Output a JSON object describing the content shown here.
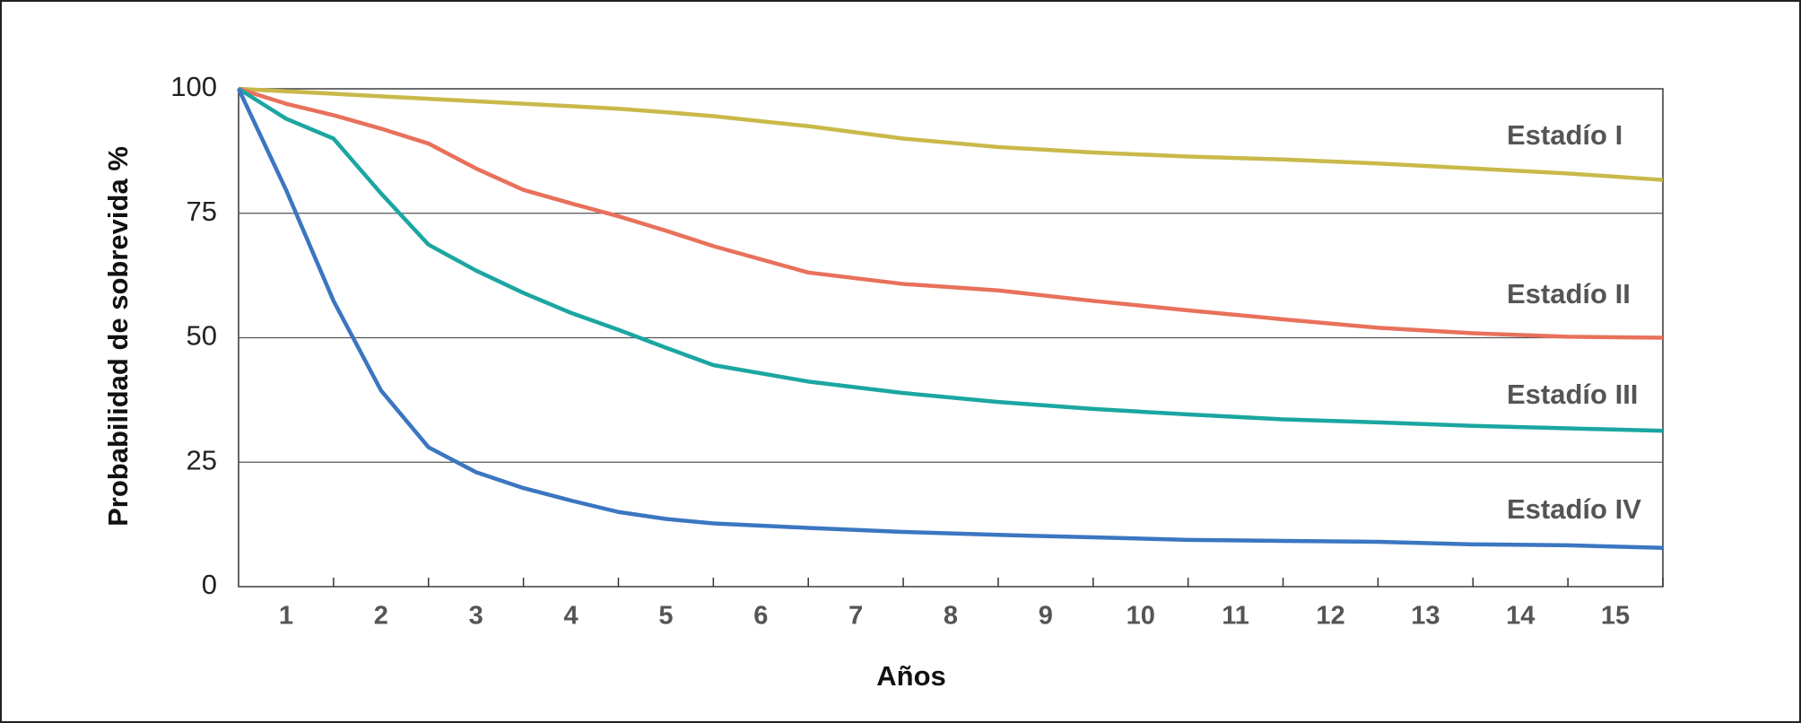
{
  "chart_data": {
    "type": "line",
    "ylabel": "Probabilidad de sobrevida %",
    "xlabel": "Años",
    "x": [
      0,
      0.5,
      1,
      1.5,
      2,
      2.5,
      3,
      3.5,
      4,
      4.5,
      5,
      6,
      7,
      8,
      9,
      10,
      11,
      12,
      13,
      14,
      15
    ],
    "xlim": [
      0,
      15
    ],
    "xticks": [
      {
        "value": 0.5,
        "label": "1"
      },
      {
        "value": 1.5,
        "label": "2"
      },
      {
        "value": 2.5,
        "label": "3"
      },
      {
        "value": 3.5,
        "label": "4"
      },
      {
        "value": 4.5,
        "label": "5"
      },
      {
        "value": 5.5,
        "label": "6"
      },
      {
        "value": 6.5,
        "label": "7"
      },
      {
        "value": 7.5,
        "label": "8"
      },
      {
        "value": 8.5,
        "label": "9"
      },
      {
        "value": 9.5,
        "label": "10"
      },
      {
        "value": 10.5,
        "label": "11"
      },
      {
        "value": 11.5,
        "label": "12"
      },
      {
        "value": 12.5,
        "label": "13"
      },
      {
        "value": 13.5,
        "label": "14"
      },
      {
        "value": 14.5,
        "label": "15"
      }
    ],
    "ylim": [
      0,
      100
    ],
    "yticks": [
      0,
      25,
      50,
      75,
      100
    ],
    "grid": true,
    "series": [
      {
        "name": "Estadío I",
        "color": "#c9b94a",
        "values": [
          100,
          99.5,
          99,
          98.5,
          98,
          97.5,
          97,
          96.5,
          96,
          95.3,
          94.5,
          92.5,
          90,
          88.3,
          87.2,
          86.4,
          85.8,
          85,
          84,
          83,
          81.7
        ]
      },
      {
        "name": "Estadío II",
        "color": "#e8715b",
        "values": [
          100,
          97,
          94.7,
          92,
          89,
          84,
          79.7,
          77,
          74.4,
          71.5,
          68.4,
          63.1,
          60.8,
          59.5,
          57.4,
          55.5,
          53.7,
          52,
          50.9,
          50.2,
          50
        ]
      },
      {
        "name": "Estadío III",
        "color": "#1ba6a1",
        "values": [
          100,
          94,
          90,
          79,
          68.7,
          63.5,
          59,
          55,
          51.6,
          48,
          44.5,
          41.2,
          38.9,
          37.1,
          35.7,
          34.6,
          33.6,
          33,
          32.3,
          31.8,
          31.3
        ]
      },
      {
        "name": "Estadío IV",
        "color": "#3b76c1",
        "values": [
          100,
          79.7,
          57.4,
          39.4,
          28,
          23,
          19.8,
          17.3,
          15,
          13.6,
          12.7,
          11.8,
          11,
          10.4,
          9.9,
          9.4,
          9.2,
          9,
          8.5,
          8.3,
          7.8
        ]
      }
    ]
  }
}
